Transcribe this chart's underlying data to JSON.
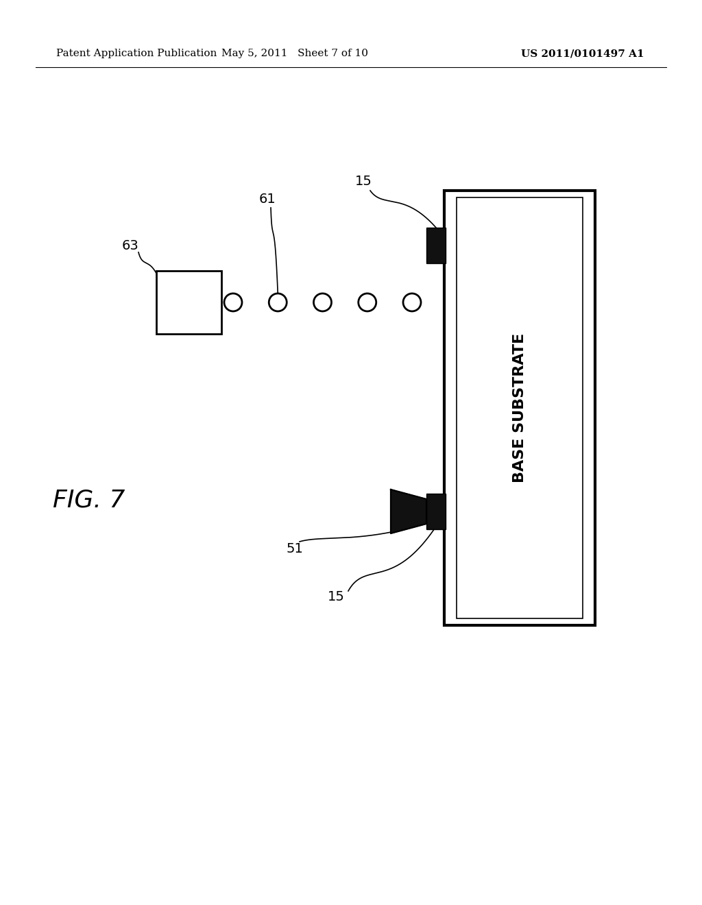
{
  "bg_color": "#ffffff",
  "header_left": "Patent Application Publication",
  "header_mid": "May 5, 2011   Sheet 7 of 10",
  "header_right": "US 2011/0101497 A1",
  "fig_label": "FIG. 7",
  "base_substrate_label": "BASE SUBSTRATE",
  "num_circles": 5,
  "circle_r": 13,
  "lw": 2.0
}
